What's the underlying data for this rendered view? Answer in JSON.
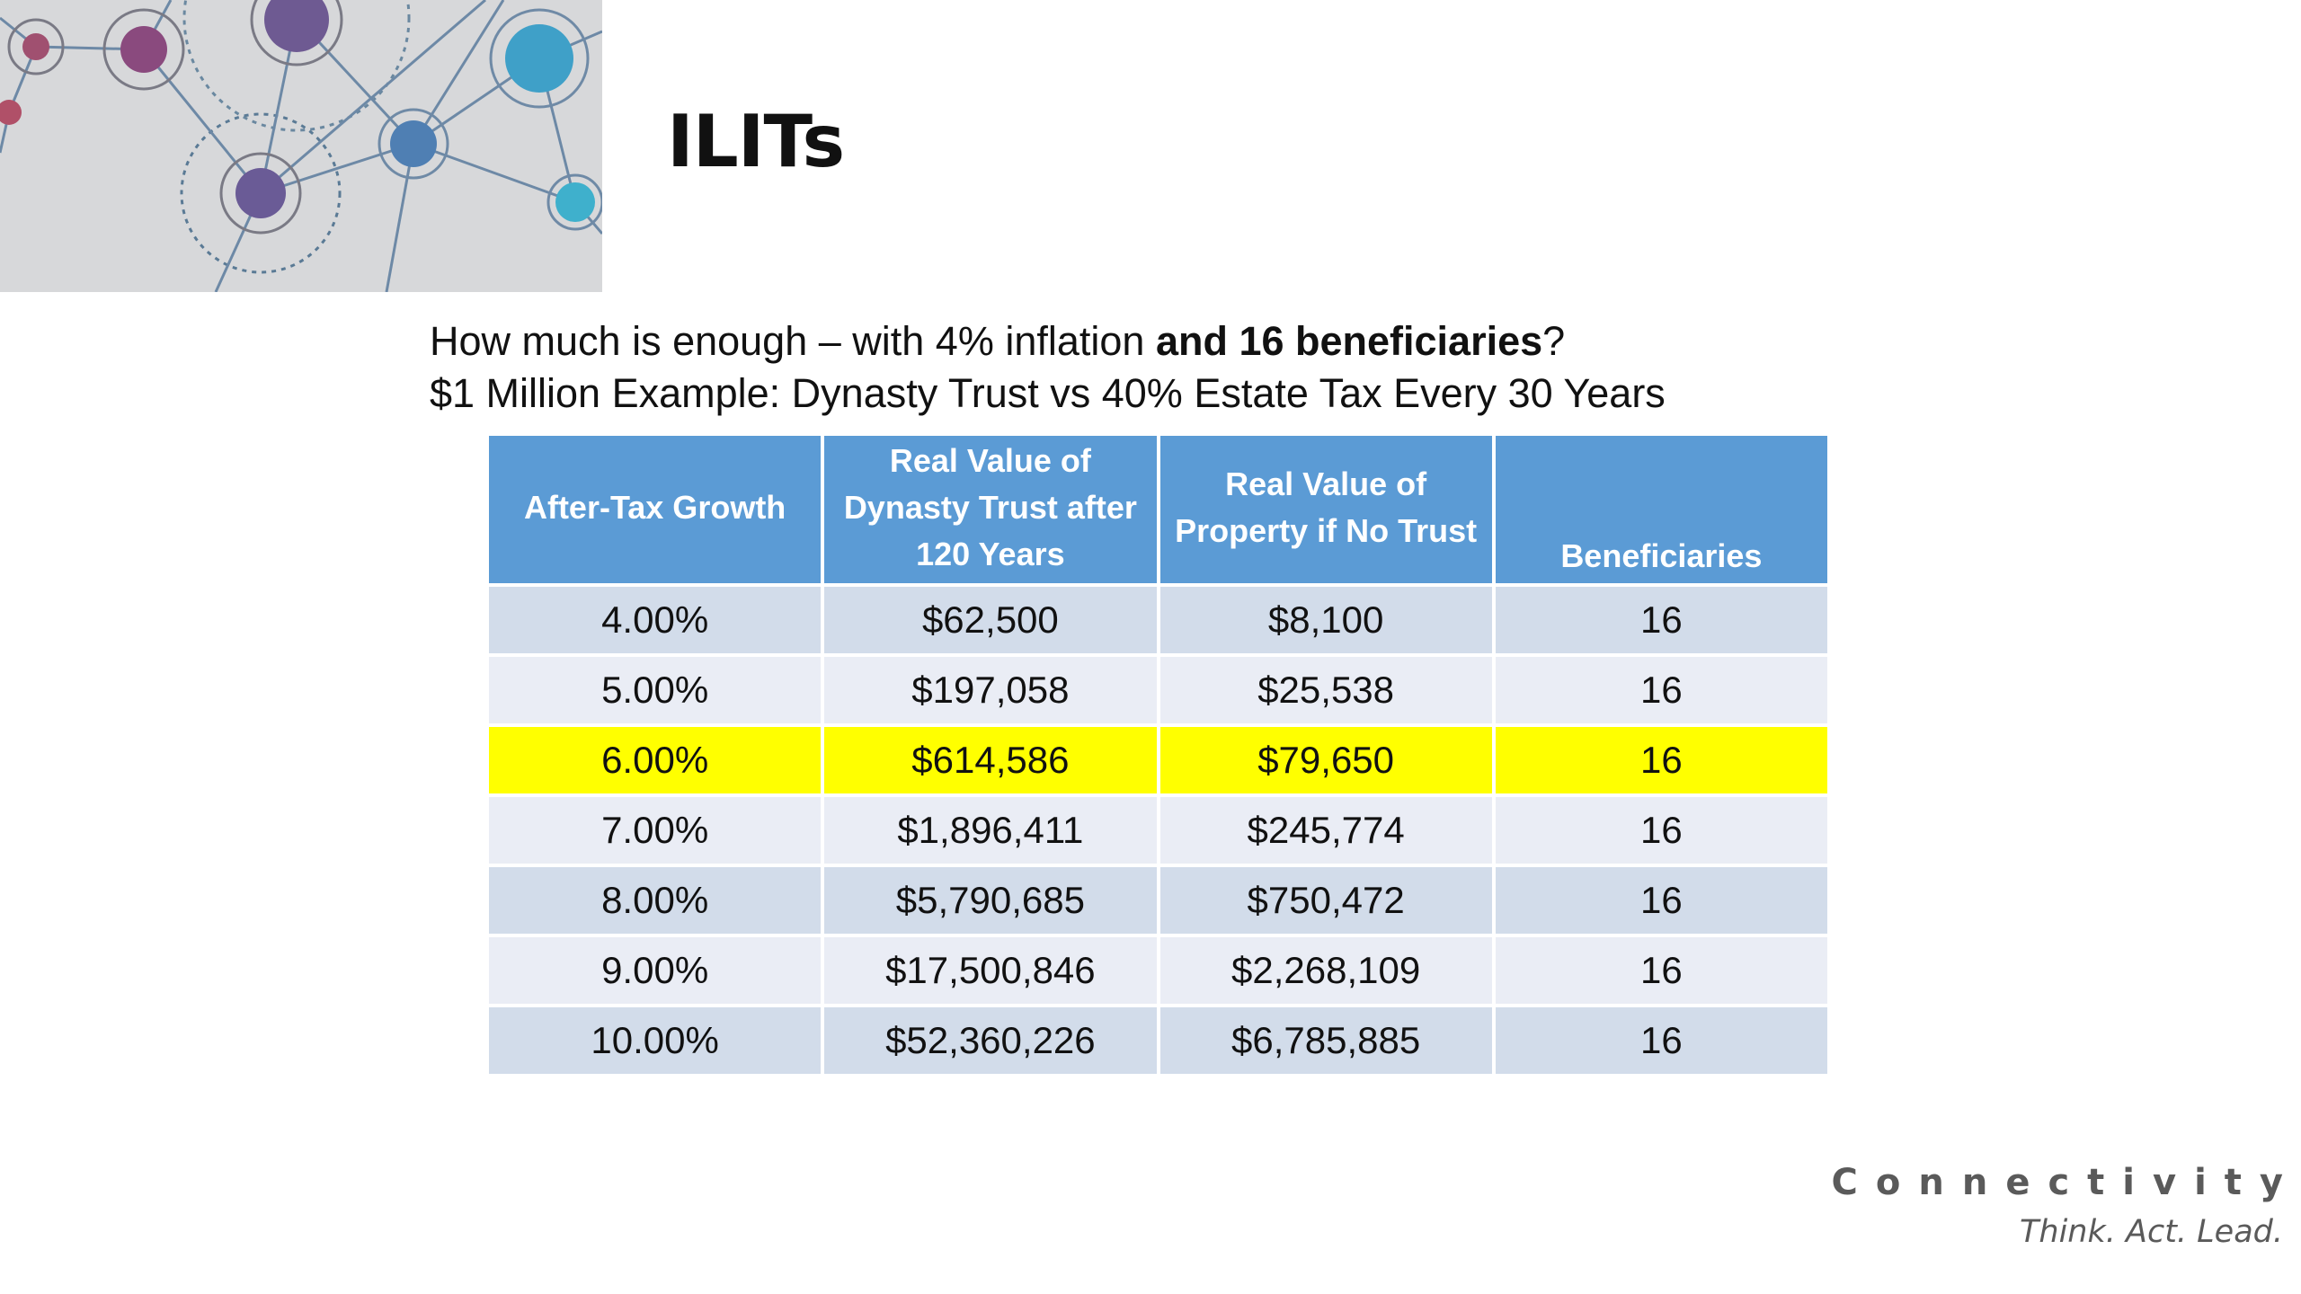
{
  "slide": {
    "title": "ILITs",
    "intro": {
      "line1_prefix": "How much is enough – with 4% inflation ",
      "line1_bold": "and 16 beneficiaries",
      "line1_suffix": "?",
      "line2": "$1 Million Example: Dynasty Trust vs 40% Estate Tax Every 30 Years"
    }
  },
  "table": {
    "headers": [
      "After-Tax Growth",
      "Real Value of Dynasty Trust after 120 Years",
      "Real Value of Property if No Trust",
      "Beneficiaries"
    ],
    "rows": [
      [
        "4.00%",
        "$62,500",
        "$8,100",
        "16"
      ],
      [
        "5.00%",
        "$197,058",
        "$25,538",
        "16"
      ],
      [
        "6.00%",
        "$614,586",
        "$79,650",
        "16"
      ],
      [
        "7.00%",
        "$1,896,411",
        "$245,774",
        "16"
      ],
      [
        "8.00%",
        "$5,790,685",
        "$750,472",
        "16"
      ],
      [
        "9.00%",
        "$17,500,846",
        "$2,268,109",
        "16"
      ],
      [
        "10.00%",
        "$52,360,226",
        "$6,785,885",
        "16"
      ]
    ],
    "highlighted_row": "6.00%"
  },
  "branding": {
    "name": "Connectivity",
    "tagline": "Think. Act. Lead."
  },
  "colors": {
    "header_bg": "#5b9bd5",
    "row_odd_bg": "#d2dcea",
    "row_even_bg": "#eaedf5",
    "highlight_bg": "#ffff00",
    "brand_text": "#5a5a5a"
  },
  "icons": {
    "decorative_graphic": "network-nodes-graphic"
  }
}
